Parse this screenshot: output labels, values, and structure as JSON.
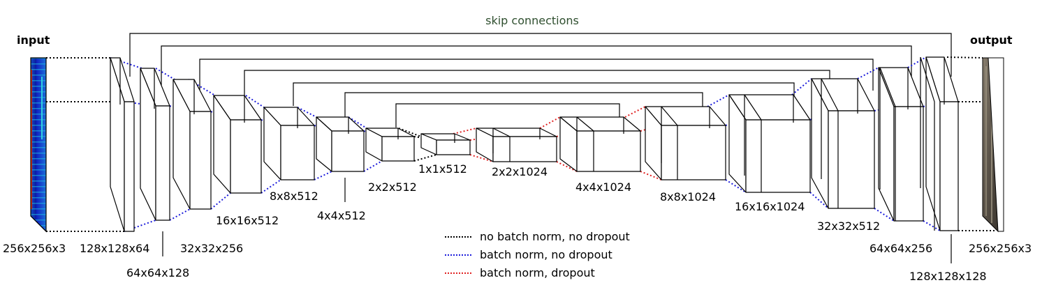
{
  "title": "skip connections",
  "input_label": "input",
  "output_label": "output",
  "colors": {
    "no_bn_no_dropout": "#000000",
    "bn_no_dropout": "#1a1adb",
    "bn_dropout": "#e02020",
    "skip_label": "#2f4f2f"
  },
  "encoder": [
    "256x256x3",
    "128x128x64",
    "64x64x128",
    "32x32x256",
    "16x16x512",
    "8x8x512",
    "4x4x512",
    "2x2x512",
    "1x1x512"
  ],
  "decoder": [
    "2x2x1024",
    "4x4x1024",
    "8x8x1024",
    "16x16x1024",
    "32x32x512",
    "64x64x256",
    "128x128x128",
    "256x256x3"
  ],
  "legend": [
    {
      "label": "no batch norm, no dropout",
      "style": "no_bn_no_dropout"
    },
    {
      "label": "batch norm, no dropout",
      "style": "bn_no_dropout"
    },
    {
      "label": "batch norm, dropout",
      "style": "bn_dropout"
    }
  ]
}
